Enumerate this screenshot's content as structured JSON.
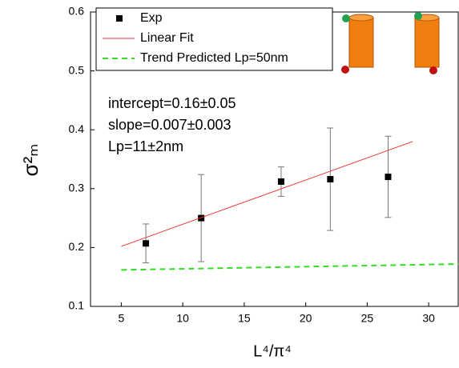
{
  "chart_data": {
    "type": "scatter",
    "xlabel": "L⁴/π⁴",
    "ylabel": "σ²ₘ",
    "xlim": [
      2.5,
      32.4
    ],
    "ylim": [
      0.1,
      0.6
    ],
    "xticks": [
      5,
      10,
      15,
      20,
      25,
      30
    ],
    "yticks": [
      0.1,
      0.2,
      0.3,
      0.4,
      0.5,
      0.6
    ],
    "legend": "upper left",
    "series": [
      {
        "name": "Exp",
        "type": "scatter",
        "color": "#000000",
        "x": [
          7,
          11.5,
          18,
          22,
          26.7
        ],
        "values": [
          0.207,
          0.25,
          0.312,
          0.316,
          0.32
        ],
        "errors": [
          0.033,
          0.074,
          0.025,
          0.087,
          0.069
        ]
      },
      {
        "name": "Linear Fit",
        "type": "line",
        "color": "#ee3333",
        "x": [
          5,
          28.7
        ],
        "values": [
          0.202,
          0.38
        ]
      },
      {
        "name": "Trend Predicted Lp=50nm",
        "type": "dashed",
        "color": "#33dd22",
        "x": [
          5,
          32.4
        ],
        "values": [
          0.162,
          0.172
        ]
      }
    ],
    "annotations": [
      "intercept=0.16±0.05",
      "slope=0.007±0.003",
      "Lp=11±2nm"
    ]
  }
}
